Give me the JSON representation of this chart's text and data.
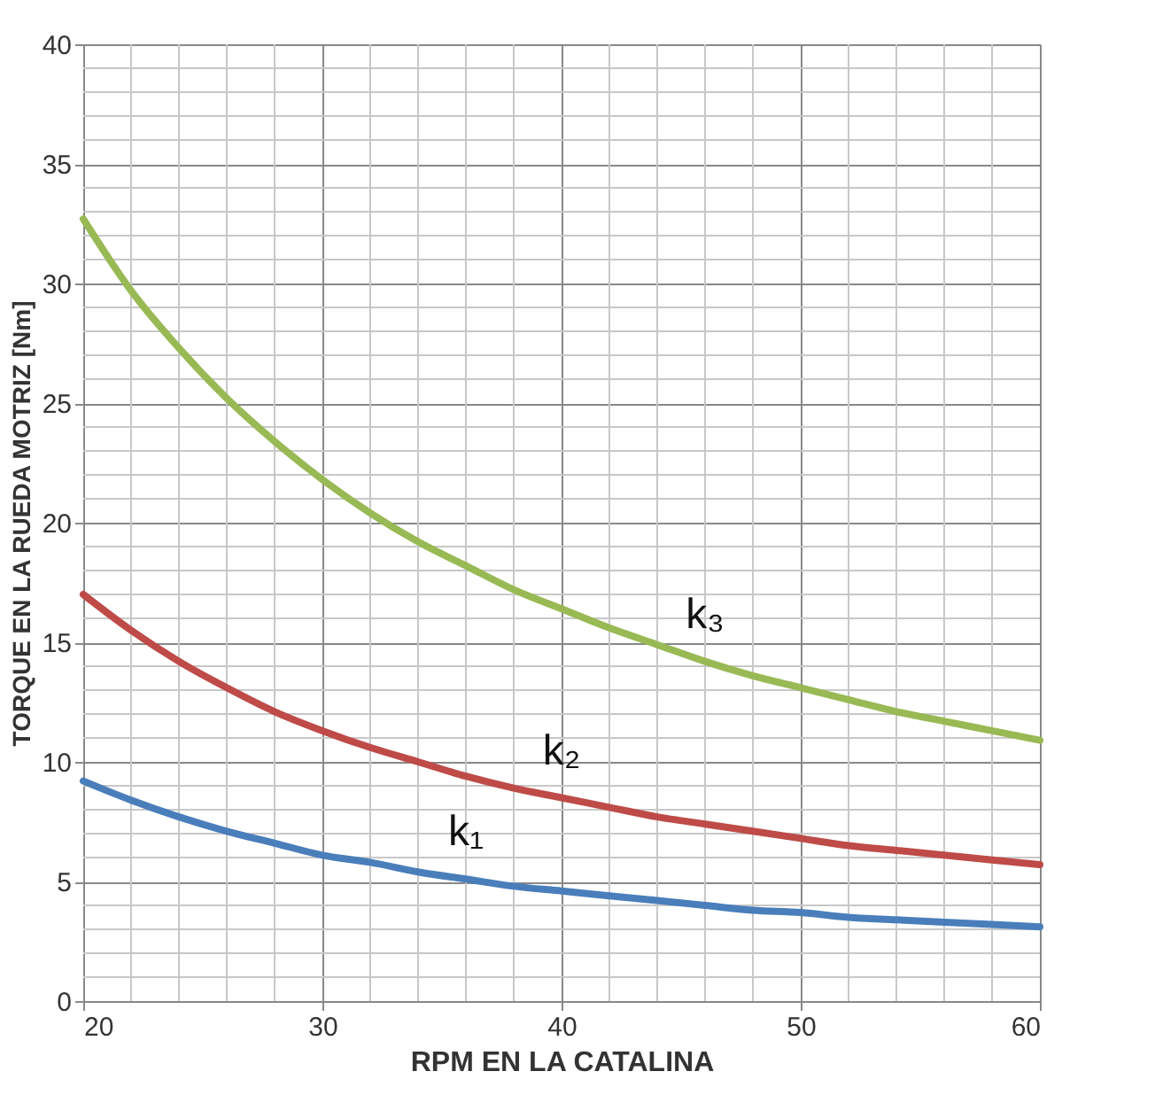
{
  "chart_data": {
    "type": "line",
    "xlabel": "RPM EN  LA CATALINA",
    "ylabel": "TORQUE EN  LA RUEDA  MOTRIZ  [Nm]",
    "x": [
      20,
      22,
      24,
      26,
      28,
      30,
      32,
      34,
      36,
      38,
      40,
      42,
      44,
      46,
      48,
      50,
      52,
      54,
      56,
      58,
      60
    ],
    "series": [
      {
        "name": "k₁",
        "color": "#4a7ebb",
        "values": [
          9.2,
          8.4,
          7.7,
          7.1,
          6.6,
          6.1,
          5.8,
          5.4,
          5.1,
          4.8,
          4.6,
          4.4,
          4.2,
          4.0,
          3.8,
          3.7,
          3.5,
          3.4,
          3.3,
          3.2,
          3.1
        ]
      },
      {
        "name": "k₂",
        "color": "#be4b48",
        "values": [
          17.0,
          15.5,
          14.2,
          13.1,
          12.1,
          11.3,
          10.6,
          10.0,
          9.4,
          8.9,
          8.5,
          8.1,
          7.7,
          7.4,
          7.1,
          6.8,
          6.5,
          6.3,
          6.1,
          5.9,
          5.7
        ]
      },
      {
        "name": "k₃",
        "color": "#98b954",
        "values": [
          32.7,
          29.7,
          27.3,
          25.2,
          23.4,
          21.8,
          20.4,
          19.2,
          18.2,
          17.2,
          16.4,
          15.6,
          14.9,
          14.2,
          13.6,
          13.1,
          12.6,
          12.1,
          11.7,
          11.3,
          10.9
        ]
      }
    ],
    "xlim": [
      20,
      60
    ],
    "xticks": [
      20,
      30,
      40,
      50,
      60
    ],
    "ylim": [
      0,
      40
    ],
    "yticks": [
      0,
      5,
      10,
      15,
      20,
      25,
      30,
      35,
      40
    ],
    "grid": true,
    "marker": "none",
    "line_style": "solid"
  }
}
